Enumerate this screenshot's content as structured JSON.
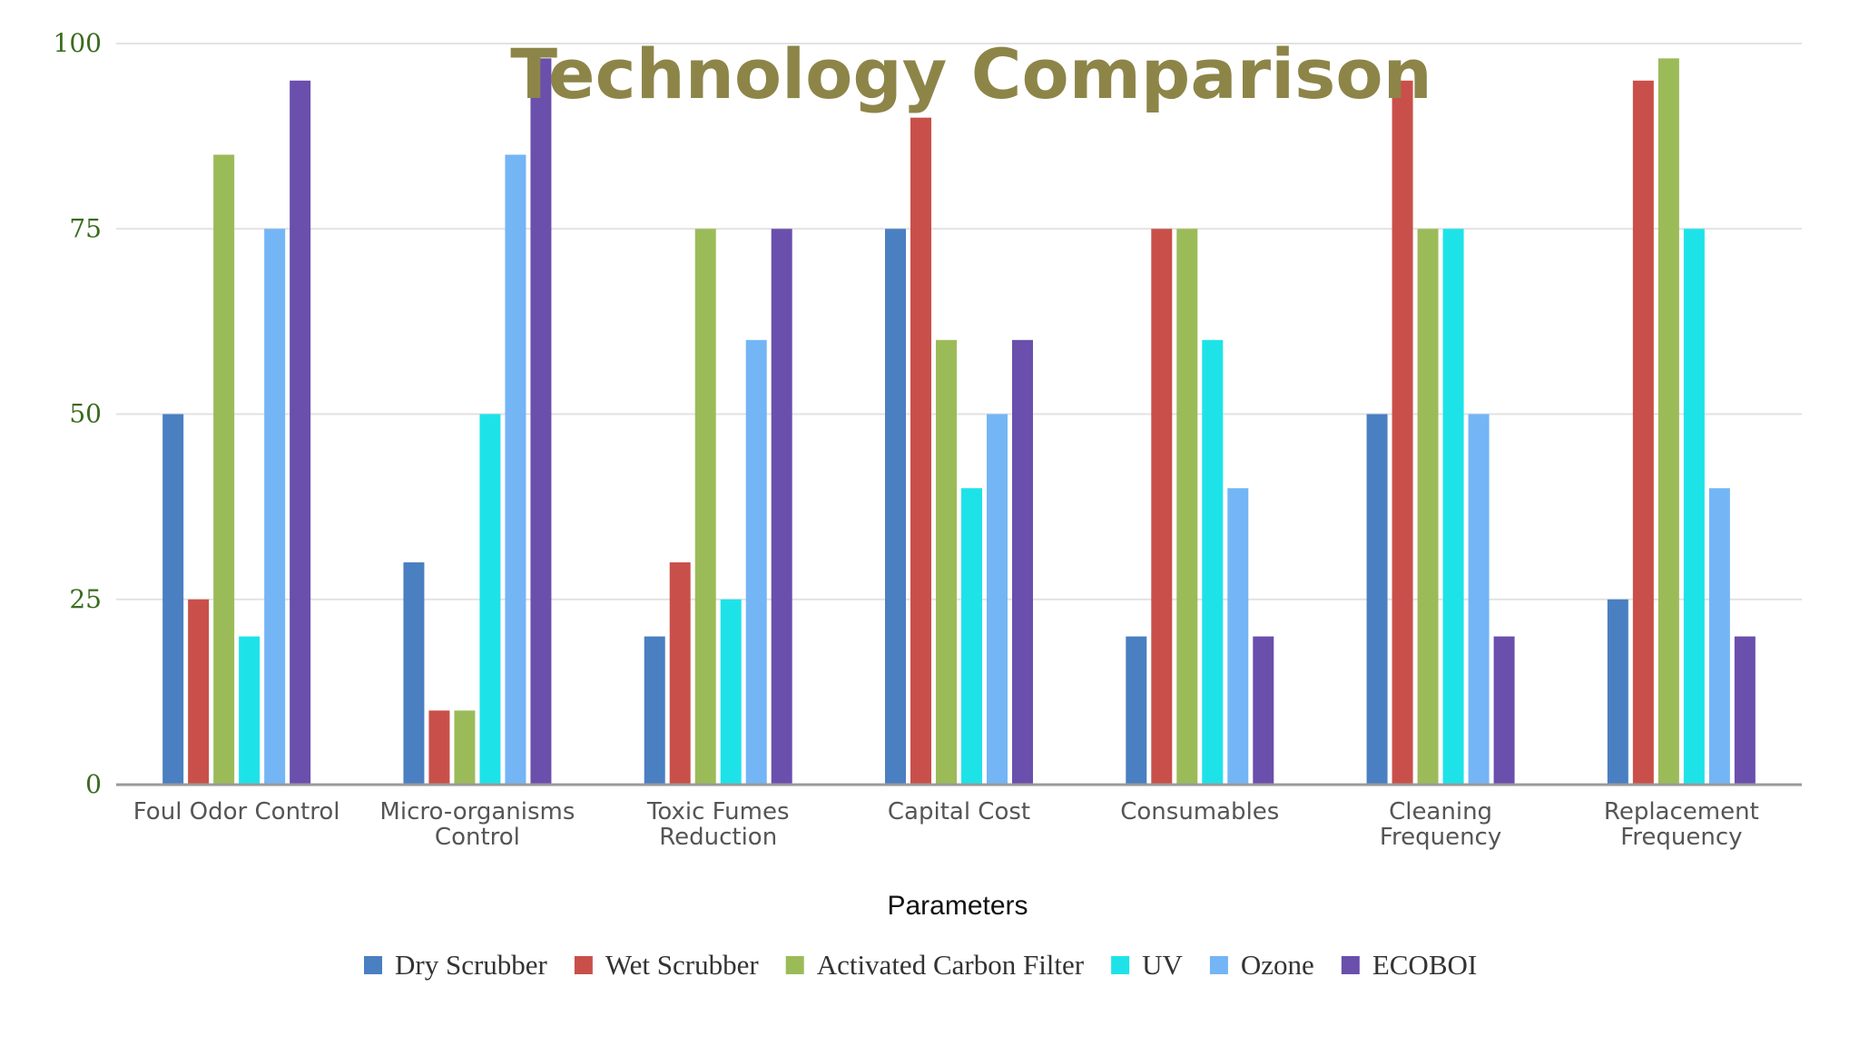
{
  "chart_data": {
    "type": "bar",
    "title": "Technology Comparison",
    "xlabel": "Parameters",
    "ylabel": "",
    "ylim": [
      0,
      100
    ],
    "yticks": [
      0,
      25,
      50,
      75,
      100
    ],
    "grid": true,
    "legend_position": "bottom",
    "categories": [
      [
        "Foul Odor Control"
      ],
      [
        "Micro-organisms",
        "Control"
      ],
      [
        "Toxic Fumes",
        "Reduction"
      ],
      [
        "Capital Cost"
      ],
      [
        "Consumables"
      ],
      [
        "Cleaning",
        "Frequency"
      ],
      [
        "Replacement",
        "Frequency"
      ]
    ],
    "series": [
      {
        "name": "Dry Scrubber",
        "color": "#4a7fc1",
        "values": [
          50,
          30,
          20,
          75,
          20,
          50,
          25
        ]
      },
      {
        "name": "Wet Scrubber",
        "color": "#c9504a",
        "values": [
          25,
          10,
          30,
          90,
          75,
          95,
          95
        ]
      },
      {
        "name": "Activated Carbon Filter",
        "color": "#9bbb59",
        "values": [
          85,
          10,
          75,
          60,
          75,
          75,
          98
        ]
      },
      {
        "name": "UV",
        "color": "#1de3e8",
        "values": [
          20,
          50,
          25,
          40,
          60,
          75,
          75
        ]
      },
      {
        "name": "Ozone",
        "color": "#74b5f5",
        "values": [
          75,
          85,
          60,
          50,
          40,
          50,
          40
        ]
      },
      {
        "name": "ECOBOI",
        "color": "#6a4fad",
        "values": [
          95,
          98,
          75,
          60,
          20,
          20,
          20
        ]
      }
    ],
    "colors": {
      "title": "#8d8548",
      "ytick": "#3a6b1f",
      "grid": "#e2e2e2",
      "axis": "#9a9a9a"
    }
  }
}
